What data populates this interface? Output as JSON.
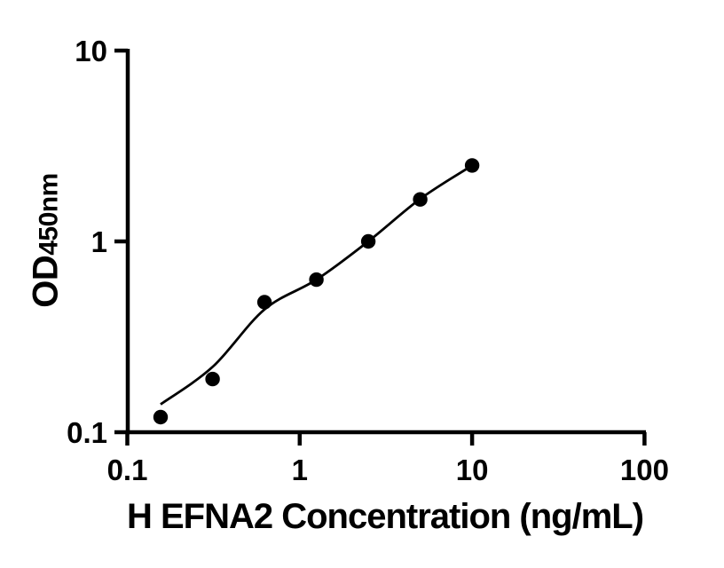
{
  "figure": {
    "background": "#ffffff",
    "ink_color": "#000000"
  },
  "chart_data": {
    "type": "scatter",
    "title": "",
    "xlabel": "H EFNA2 Concentration (ng/mL)",
    "ylabel": "OD450nm",
    "ylabel_main": "OD",
    "ylabel_sub": "450nm",
    "x_scale": "log",
    "y_scale": "log",
    "xlim": [
      0.1,
      100
    ],
    "ylim": [
      0.1,
      10
    ],
    "grid": false,
    "legend": "none",
    "x_ticks": [
      {
        "value": 0.1,
        "label": "0.1"
      },
      {
        "value": 1,
        "label": "1"
      },
      {
        "value": 10,
        "label": "10"
      },
      {
        "value": 100,
        "label": "100"
      }
    ],
    "y_ticks": [
      {
        "value": 10,
        "label": "10"
      },
      {
        "value": 1,
        "label": "1"
      },
      {
        "value": 0.1,
        "label": "0.1"
      }
    ],
    "series": [
      {
        "name": "standard-points",
        "type": "scatter",
        "marker": "filled-circle",
        "color": "#000000",
        "x": [
          0.156,
          0.3125,
          0.625,
          1.25,
          2.5,
          5,
          10
        ],
        "y": [
          0.12,
          0.19,
          0.48,
          0.63,
          1.0,
          1.66,
          2.5
        ]
      },
      {
        "name": "fit-curve",
        "type": "line",
        "color": "#000000",
        "x": [
          0.156,
          0.3125,
          0.625,
          1.25,
          2.5,
          5,
          10
        ],
        "y": [
          0.14,
          0.22,
          0.44,
          0.63,
          1.0,
          1.67,
          2.5
        ]
      }
    ]
  }
}
